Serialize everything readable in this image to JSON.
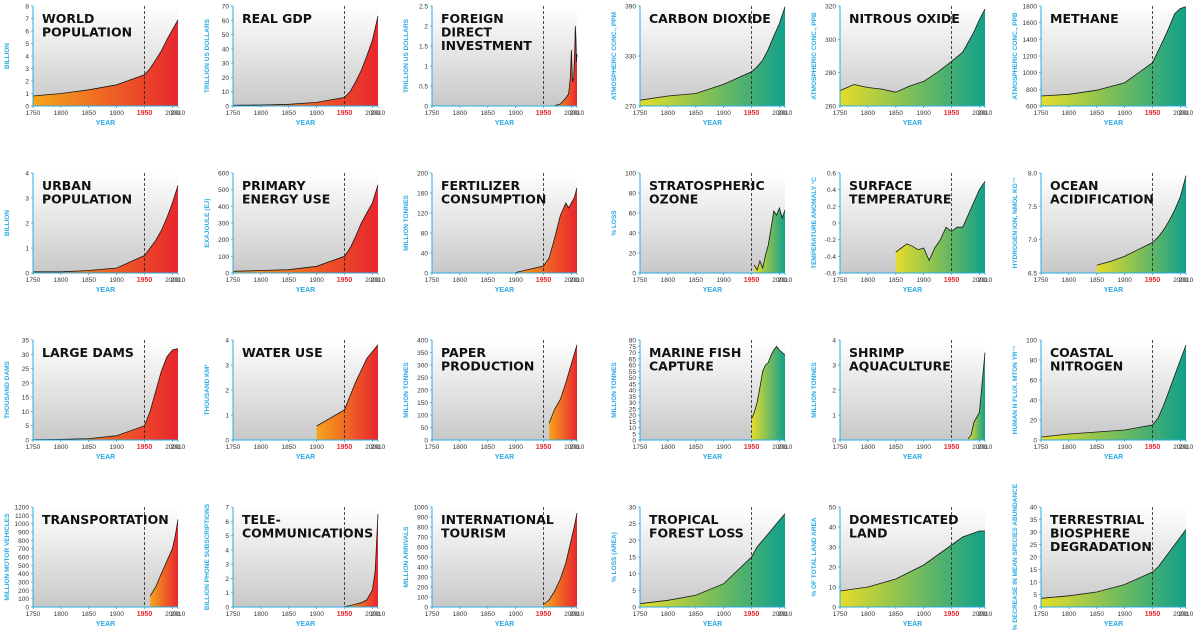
{
  "common": {
    "x_label": "YEAR",
    "x_ticks": [
      "1750",
      "1800",
      "1850",
      "1900",
      "1950",
      "2000",
      "2010"
    ],
    "marker_year": "1950",
    "colors": {
      "axis": "#29abe2",
      "marker": "#e8262e",
      "socio_start": "#f6a51b",
      "socio_end": "#e8262e",
      "earth_start": "#e6dc2a",
      "earth_end": "#11a08a",
      "panel_top": "#ffffff",
      "panel_bottom": "#c8c8c8"
    }
  },
  "chart_data": [
    {
      "type": "area",
      "theme": "socio",
      "title": [
        "WORLD",
        "POPULATION"
      ],
      "ylabel": "BILLION",
      "yticks": [
        "0",
        "1",
        "2",
        "3",
        "4",
        "5",
        "6",
        "7",
        "8"
      ],
      "ylim": [
        0,
        8
      ],
      "x": [
        1750,
        1800,
        1850,
        1900,
        1950,
        1960,
        1970,
        1980,
        1990,
        2000,
        2010
      ],
      "y": [
        0.8,
        1.0,
        1.3,
        1.7,
        2.5,
        3.0,
        3.7,
        4.4,
        5.3,
        6.1,
        6.9
      ]
    },
    {
      "type": "area",
      "theme": "socio",
      "title": [
        "REAL GDP"
      ],
      "ylabel": "TRILLION US DOLLARS",
      "yticks": [
        "0",
        "10",
        "20",
        "30",
        "40",
        "50",
        "60",
        "70"
      ],
      "ylim": [
        0,
        70
      ],
      "x": [
        1750,
        1800,
        1850,
        1900,
        1950,
        1960,
        1970,
        1980,
        1990,
        2000,
        2010
      ],
      "y": [
        0.5,
        0.7,
        1.2,
        2.5,
        6,
        10,
        17,
        25,
        35,
        46,
        63
      ]
    },
    {
      "type": "area",
      "theme": "socio",
      "title": [
        "FOREIGN",
        "DIRECT",
        "INVESTMENT"
      ],
      "ylabel": "TRILLION US DOLLARS",
      "yticks": [
        "0",
        "0.5",
        "1",
        "1.5",
        "2",
        "2.5"
      ],
      "ylim": [
        0,
        2.5
      ],
      "x": [
        1970,
        1980,
        1990,
        1995,
        1998,
        2000,
        2002,
        2004,
        2006,
        2007,
        2008,
        2009,
        2010
      ],
      "y": [
        0.01,
        0.05,
        0.2,
        0.3,
        0.7,
        1.4,
        0.6,
        0.7,
        1.4,
        2.0,
        1.7,
        1.1,
        1.3
      ]
    },
    {
      "type": "area",
      "theme": "earth",
      "title": [
        "CARBON DIOXIDE"
      ],
      "ylabel": "ATMOSPHERIC CONC., PPM",
      "yticks": [
        "270",
        "330",
        "390"
      ],
      "ylim": [
        270,
        390
      ],
      "x": [
        1750,
        1800,
        1850,
        1900,
        1950,
        1960,
        1970,
        1980,
        1990,
        2000,
        2010
      ],
      "y": [
        277,
        282,
        285,
        296,
        311,
        317,
        325,
        338,
        354,
        369,
        389
      ]
    },
    {
      "type": "area",
      "theme": "earth",
      "title": [
        "NITROUS OXIDE"
      ],
      "ylabel": "ATMOSPHERIC CONC., PPB",
      "yticks": [
        "260",
        "280",
        "300",
        "320"
      ],
      "ylim": [
        260,
        325
      ],
      "x": [
        1750,
        1775,
        1800,
        1825,
        1850,
        1875,
        1900,
        1925,
        1950,
        1970,
        1990,
        2000,
        2010
      ],
      "y": [
        270,
        274,
        272,
        271,
        269,
        273,
        276,
        282,
        289,
        295,
        308,
        316,
        323
      ]
    },
    {
      "type": "area",
      "theme": "earth",
      "title": [
        "METHANE"
      ],
      "ylabel": "ATMOSPHERIC CONC., PPB",
      "yticks": [
        "600",
        "800",
        "1000",
        "1200",
        "1400",
        "1600",
        "1800"
      ],
      "ylim": [
        600,
        1800
      ],
      "x": [
        1750,
        1800,
        1850,
        1900,
        1950,
        1960,
        1970,
        1980,
        1990,
        2000,
        2010
      ],
      "y": [
        720,
        740,
        790,
        880,
        1120,
        1260,
        1400,
        1550,
        1710,
        1770,
        1790
      ]
    },
    {
      "type": "area",
      "theme": "socio",
      "title": [
        "URBAN",
        "POPULATION"
      ],
      "ylabel": "BILLION",
      "yticks": [
        "0",
        "1",
        "2",
        "3",
        "4"
      ],
      "ylim": [
        0,
        4
      ],
      "x": [
        1750,
        1800,
        1850,
        1900,
        1950,
        1960,
        1970,
        1980,
        1990,
        2000,
        2010
      ],
      "y": [
        0.05,
        0.05,
        0.1,
        0.2,
        0.7,
        1.0,
        1.3,
        1.7,
        2.2,
        2.8,
        3.5
      ]
    },
    {
      "type": "area",
      "theme": "socio",
      "title": [
        "PRIMARY",
        "ENERGY USE"
      ],
      "ylabel": "EXAJOULE (EJ)",
      "yticks": [
        "0",
        "100",
        "200",
        "300",
        "400",
        "500",
        "600"
      ],
      "ylim": [
        0,
        600
      ],
      "x": [
        1750,
        1800,
        1850,
        1900,
        1950,
        1960,
        1970,
        1980,
        1990,
        2000,
        2010
      ],
      "y": [
        10,
        15,
        20,
        40,
        100,
        150,
        220,
        300,
        360,
        420,
        530
      ]
    },
    {
      "type": "area",
      "theme": "socio",
      "title": [
        "FERTILIZER",
        "CONSUMPTION"
      ],
      "ylabel": "MILLION TONNES",
      "yticks": [
        "0",
        "40",
        "80",
        "120",
        "160",
        "200"
      ],
      "ylim": [
        0,
        200
      ],
      "x": [
        1900,
        1950,
        1960,
        1970,
        1980,
        1990,
        1995,
        2000,
        2005,
        2010
      ],
      "y": [
        1,
        14,
        30,
        70,
        115,
        140,
        130,
        140,
        150,
        170
      ]
    },
    {
      "type": "area",
      "theme": "earth",
      "title": [
        "STRATOSPHERIC",
        "OZONE"
      ],
      "ylabel": "% LOSS",
      "yticks": [
        "0",
        "20",
        "40",
        "60",
        "80",
        "100"
      ],
      "ylim": [
        0,
        100
      ],
      "x": [
        1955,
        1960,
        1965,
        1970,
        1975,
        1980,
        1985,
        1990,
        1995,
        2000,
        2005,
        2010
      ],
      "y": [
        8,
        3,
        12,
        5,
        18,
        28,
        45,
        62,
        58,
        65,
        55,
        63
      ]
    },
    {
      "type": "area",
      "theme": "earth",
      "title": [
        "SURFACE",
        "TEMPERATURE"
      ],
      "ylabel": "TEMPERATURE ANOMALY °C",
      "yticks": [
        "-0.6",
        "-0.4",
        "-0.2",
        "0",
        "0.2",
        "0.4",
        "0.6"
      ],
      "ylim": [
        -0.6,
        0.6
      ],
      "x": [
        1850,
        1860,
        1870,
        1880,
        1890,
        1900,
        1910,
        1920,
        1930,
        1940,
        1950,
        1960,
        1970,
        1980,
        1990,
        2000,
        2010
      ],
      "y": [
        -0.35,
        -0.3,
        -0.25,
        -0.28,
        -0.32,
        -0.3,
        -0.45,
        -0.3,
        -0.2,
        -0.05,
        -0.1,
        -0.05,
        -0.05,
        0.1,
        0.25,
        0.4,
        0.5
      ]
    },
    {
      "type": "area",
      "theme": "earth",
      "title": [
        "OCEAN",
        "ACIDIFICATION"
      ],
      "ylabel": "HYDROGEN ION, NMOL KG⁻¹",
      "yticks": [
        "6.5",
        "7.0",
        "7.5",
        "8.0"
      ],
      "ylim": [
        6.4,
        8.3
      ],
      "x": [
        1850,
        1875,
        1900,
        1925,
        1950,
        1960,
        1970,
        1980,
        1990,
        2000,
        2010
      ],
      "y": [
        6.55,
        6.62,
        6.72,
        6.85,
        6.98,
        7.08,
        7.22,
        7.4,
        7.6,
        7.85,
        8.25
      ]
    },
    {
      "type": "area",
      "theme": "socio",
      "title": [
        "LARGE DAMS"
      ],
      "ylabel": "THOUSAND DAMS",
      "yticks": [
        "0",
        "5",
        "10",
        "15",
        "20",
        "25",
        "30",
        "35"
      ],
      "ylim": [
        0,
        35
      ],
      "x": [
        1750,
        1800,
        1850,
        1900,
        1950,
        1960,
        1970,
        1980,
        1990,
        2000,
        2010
      ],
      "y": [
        0.1,
        0.2,
        0.5,
        1.5,
        5,
        10,
        17,
        24,
        29,
        31.5,
        32
      ]
    },
    {
      "type": "area",
      "theme": "socio",
      "title": [
        "WATER USE"
      ],
      "ylabel": "THOUSAND KM³",
      "yticks": [
        "0",
        "1",
        "2",
        "3",
        "4"
      ],
      "ylim": [
        0,
        4.3
      ],
      "x": [
        1900,
        1950,
        1960,
        1970,
        1980,
        1990,
        2000,
        2010
      ],
      "y": [
        0.6,
        1.3,
        1.9,
        2.5,
        3.0,
        3.5,
        3.8,
        4.1
      ]
    },
    {
      "type": "area",
      "theme": "socio",
      "title": [
        "PAPER",
        "PRODUCTION"
      ],
      "ylabel": "MILLION TONNES",
      "yticks": [
        "0",
        "50",
        "100",
        "150",
        "200",
        "250",
        "300",
        "350",
        "400"
      ],
      "ylim": [
        0,
        420
      ],
      "x": [
        1960,
        1970,
        1980,
        1990,
        2000,
        2010
      ],
      "y": [
        70,
        130,
        170,
        240,
        320,
        400
      ]
    },
    {
      "type": "area",
      "theme": "earth",
      "title": [
        "MARINE FISH",
        "CAPTURE"
      ],
      "ylabel": "MILLION TONNES",
      "yticks": [
        "0",
        "5",
        "10",
        "15",
        "20",
        "25",
        "30",
        "35",
        "40",
        "45",
        "50",
        "55",
        "60",
        "65",
        "70",
        "75",
        "80"
      ],
      "ylim": [
        0,
        80
      ],
      "x": [
        1950,
        1955,
        1960,
        1965,
        1970,
        1975,
        1980,
        1985,
        1990,
        1995,
        2000,
        2005,
        2010
      ],
      "y": [
        17,
        22,
        30,
        42,
        55,
        60,
        62,
        68,
        72,
        75,
        72,
        70,
        68
      ]
    },
    {
      "type": "area",
      "theme": "earth",
      "title": [
        "SHRIMP",
        "AQUACULTURE"
      ],
      "ylabel": "MILLION TONNES",
      "yticks": [
        "0",
        "1",
        "2",
        "3",
        "4"
      ],
      "ylim": [
        0,
        4
      ],
      "x": [
        1980,
        1985,
        1990,
        1995,
        2000,
        2005,
        2010
      ],
      "y": [
        0.05,
        0.2,
        0.7,
        0.9,
        1.1,
        2.3,
        3.5
      ]
    },
    {
      "type": "area",
      "theme": "earth",
      "title": [
        "COASTAL",
        "NITROGEN"
      ],
      "ylabel": "HUMAN N FLUX, MTON YR⁻¹",
      "yticks": [
        "0",
        "20",
        "40",
        "60",
        "80",
        "100"
      ],
      "ylim": [
        0,
        100
      ],
      "x": [
        1750,
        1800,
        1850,
        1900,
        1950,
        1960,
        1970,
        1980,
        1990,
        2000,
        2010
      ],
      "y": [
        3,
        6,
        8,
        10,
        15,
        22,
        35,
        50,
        65,
        80,
        95
      ]
    },
    {
      "type": "area",
      "theme": "socio",
      "title": [
        "TRANSPORTATION"
      ],
      "ylabel": "MILLION MOTOR VEHICLES",
      "yticks": [
        "0",
        "100",
        "200",
        "300",
        "400",
        "500",
        "600",
        "700",
        "800",
        "900",
        "1000",
        "1100",
        "1200"
      ],
      "ylim": [
        0,
        1200
      ],
      "x": [
        1960,
        1970,
        1980,
        1990,
        2000,
        2005,
        2010
      ],
      "y": [
        130,
        240,
        400,
        550,
        700,
        850,
        1050
      ]
    },
    {
      "type": "area",
      "theme": "socio",
      "title": [
        "TELE-",
        "COMMUNICATIONS"
      ],
      "ylabel": "BILLION PHONE SUBSCRIPTIONS",
      "yticks": [
        "0",
        "1",
        "2",
        "3",
        "4",
        "5",
        "6",
        "7"
      ],
      "ylim": [
        0,
        7
      ],
      "x": [
        1950,
        1960,
        1970,
        1980,
        1990,
        2000,
        2005,
        2010
      ],
      "y": [
        0.03,
        0.1,
        0.2,
        0.3,
        0.5,
        1.2,
        2.5,
        6.5
      ]
    },
    {
      "type": "area",
      "theme": "socio",
      "title": [
        "INTERNATIONAL",
        "TOURISM"
      ],
      "ylabel": "MILLION ARRIVALS",
      "yticks": [
        "0",
        "100",
        "200",
        "300",
        "400",
        "500",
        "600",
        "700",
        "800",
        "900",
        "1000"
      ],
      "ylim": [
        0,
        1000
      ],
      "x": [
        1950,
        1960,
        1970,
        1980,
        1990,
        2000,
        2005,
        2010
      ],
      "y": [
        25,
        70,
        160,
        280,
        440,
        680,
        800,
        940
      ]
    },
    {
      "type": "area",
      "theme": "earth",
      "title": [
        "TROPICAL",
        "FOREST LOSS"
      ],
      "ylabel": "% LOSS (AREA)",
      "yticks": [
        "0",
        "5",
        "10",
        "15",
        "20",
        "25",
        "30"
      ],
      "ylim": [
        0,
        30
      ],
      "x": [
        1750,
        1800,
        1850,
        1900,
        1950,
        1960,
        1970,
        1980,
        1990,
        2000,
        2010
      ],
      "y": [
        1,
        2,
        3.5,
        7,
        15,
        18,
        20,
        22,
        24,
        26,
        28
      ]
    },
    {
      "type": "area",
      "theme": "earth",
      "title": [
        "DOMESTICATED",
        "LAND"
      ],
      "ylabel": "% OF TOTAL LAND AREA",
      "yticks": [
        "0",
        "10",
        "20",
        "30",
        "40",
        "50"
      ],
      "ylim": [
        0,
        50
      ],
      "x": [
        1750,
        1800,
        1850,
        1900,
        1950,
        1960,
        1970,
        1980,
        1990,
        2000,
        2010
      ],
      "y": [
        8,
        10,
        14,
        21,
        31,
        33,
        35,
        36,
        37,
        38,
        38
      ]
    },
    {
      "type": "area",
      "theme": "earth",
      "title": [
        "TERRESTRIAL",
        "BIOSPHERE",
        "DEGRADATION"
      ],
      "ylabel": "% DECREASE IN MEAN SPECIES ABUNDANCE",
      "yticks": [
        "0",
        "5",
        "10",
        "15",
        "20",
        "25",
        "30",
        "35",
        "40"
      ],
      "ylim": [
        0,
        40
      ],
      "x": [
        1750,
        1800,
        1850,
        1900,
        1950,
        1960,
        1970,
        1980,
        1990,
        2000,
        2010
      ],
      "y": [
        3.5,
        4.5,
        6,
        9,
        14,
        16,
        19,
        22,
        25,
        28,
        31
      ]
    }
  ]
}
